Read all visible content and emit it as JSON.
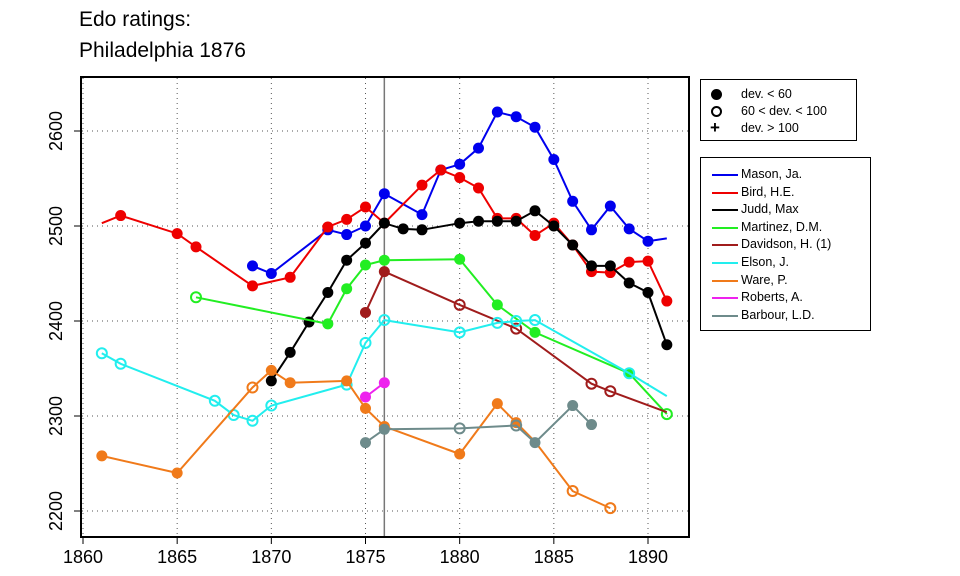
{
  "title_line1": "Edo ratings:",
  "title_line2": "Philadelphia 1876",
  "chart_data": {
    "type": "line",
    "title": "Edo ratings: Philadelphia 1876",
    "xlabel": "",
    "ylabel": "",
    "xlim": [
      1860,
      1892
    ],
    "ylim": [
      2190,
      2655
    ],
    "xticks": [
      1860,
      1865,
      1870,
      1875,
      1880,
      1885,
      1890
    ],
    "yticks": [
      2200,
      2300,
      2400,
      2500,
      2600
    ],
    "vline": 1876,
    "grid": true,
    "symbol_legend": [
      {
        "label": "dev. < 60",
        "marker": "filled"
      },
      {
        "label": "60 < dev. < 100",
        "marker": "open"
      },
      {
        "label": "dev. > 100",
        "marker": "plus"
      }
    ],
    "series": [
      {
        "name": "Mason, Ja.",
        "color": "#0000ee",
        "points": [
          [
            1869,
            2458,
            "f"
          ],
          [
            1870,
            2450,
            "f"
          ],
          [
            1873,
            2496,
            "f"
          ],
          [
            1874,
            2491,
            "f"
          ],
          [
            1875,
            2500,
            "f"
          ],
          [
            1876,
            2534,
            "f"
          ],
          [
            1878,
            2512,
            "f"
          ],
          [
            1879,
            2559,
            "f"
          ],
          [
            1880,
            2565,
            "f"
          ],
          [
            1881,
            2582,
            "f"
          ],
          [
            1882,
            2620,
            "f"
          ],
          [
            1883,
            2615,
            "f"
          ],
          [
            1884,
            2604,
            "f"
          ],
          [
            1885,
            2570,
            "f"
          ],
          [
            1886,
            2526,
            "f"
          ],
          [
            1887,
            2496,
            "f"
          ],
          [
            1888,
            2521,
            "f"
          ],
          [
            1889,
            2497,
            "f"
          ],
          [
            1890,
            2484,
            "f"
          ],
          [
            1891,
            2487,
            "n"
          ]
        ]
      },
      {
        "name": "Bird, H.E.",
        "color": "#ee0000",
        "points": [
          [
            1861,
            2503,
            "n"
          ],
          [
            1862,
            2511,
            "f"
          ],
          [
            1865,
            2492,
            "f"
          ],
          [
            1866,
            2478,
            "f"
          ],
          [
            1869,
            2437,
            "f"
          ],
          [
            1871,
            2446,
            "f"
          ],
          [
            1873,
            2499,
            "f"
          ],
          [
            1874,
            2507,
            "f"
          ],
          [
            1875,
            2520,
            "f"
          ],
          [
            1876,
            2503,
            "f"
          ],
          [
            1878,
            2543,
            "f"
          ],
          [
            1879,
            2559,
            "f"
          ],
          [
            1880,
            2551,
            "f"
          ],
          [
            1881,
            2540,
            "f"
          ],
          [
            1882,
            2508,
            "f"
          ],
          [
            1883,
            2508,
            "f"
          ],
          [
            1884,
            2490,
            "f"
          ],
          [
            1885,
            2503,
            "f"
          ],
          [
            1886,
            2480,
            "f"
          ],
          [
            1887,
            2452,
            "f"
          ],
          [
            1888,
            2451,
            "f"
          ],
          [
            1889,
            2462,
            "f"
          ],
          [
            1890,
            2463,
            "f"
          ],
          [
            1891,
            2421,
            "f"
          ]
        ]
      },
      {
        "name": "Judd, Max",
        "color": "#000000",
        "points": [
          [
            1870,
            2337,
            "f"
          ],
          [
            1871,
            2367,
            "f"
          ],
          [
            1872,
            2399,
            "f"
          ],
          [
            1873,
            2430,
            "f"
          ],
          [
            1874,
            2464,
            "f"
          ],
          [
            1875,
            2482,
            "f"
          ],
          [
            1876,
            2503,
            "f"
          ],
          [
            1877,
            2497,
            "f"
          ],
          [
            1878,
            2496,
            "f"
          ],
          [
            1880,
            2503,
            "f"
          ],
          [
            1881,
            2505,
            "f"
          ],
          [
            1882,
            2505,
            "f"
          ],
          [
            1883,
            2505,
            "f"
          ],
          [
            1884,
            2516,
            "f"
          ],
          [
            1885,
            2500,
            "f"
          ],
          [
            1886,
            2480,
            "f"
          ],
          [
            1887,
            2458,
            "f"
          ],
          [
            1888,
            2458,
            "f"
          ],
          [
            1889,
            2440,
            "f"
          ],
          [
            1890,
            2430,
            "f"
          ],
          [
            1891,
            2375,
            "f"
          ]
        ]
      },
      {
        "name": "Martinez, D.M.",
        "color": "#22ee22",
        "points": [
          [
            1866,
            2425,
            "o"
          ],
          [
            1873,
            2397,
            "f"
          ],
          [
            1874,
            2434,
            "f"
          ],
          [
            1875,
            2459,
            "f"
          ],
          [
            1876,
            2464,
            "f"
          ],
          [
            1880,
            2465,
            "f"
          ],
          [
            1882,
            2417,
            "f"
          ],
          [
            1884,
            2388,
            "f"
          ],
          [
            1889,
            2345,
            "f"
          ],
          [
            1891,
            2302,
            "o"
          ]
        ]
      },
      {
        "name": "Davidson, H. (1)",
        "color": "#a01c1c",
        "points": [
          [
            1875,
            2409,
            "f"
          ],
          [
            1876,
            2452,
            "f"
          ],
          [
            1880,
            2417,
            "o"
          ],
          [
            1883,
            2392,
            "o"
          ],
          [
            1887,
            2334,
            "o"
          ],
          [
            1888,
            2326,
            "o"
          ],
          [
            1891,
            2304,
            "n"
          ]
        ]
      },
      {
        "name": "Elson, J.",
        "color": "#22eeee",
        "points": [
          [
            1861,
            2366,
            "o"
          ],
          [
            1862,
            2355,
            "o"
          ],
          [
            1867,
            2316,
            "o"
          ],
          [
            1868,
            2301,
            "o"
          ],
          [
            1869,
            2295,
            "o"
          ],
          [
            1870,
            2311,
            "o"
          ],
          [
            1874,
            2333,
            "o"
          ],
          [
            1875,
            2377,
            "o"
          ],
          [
            1876,
            2401,
            "o"
          ],
          [
            1880,
            2388,
            "o"
          ],
          [
            1882,
            2398,
            "o"
          ],
          [
            1883,
            2400,
            "o"
          ],
          [
            1884,
            2401,
            "o"
          ],
          [
            1889,
            2345,
            "o"
          ],
          [
            1891,
            2321,
            "n"
          ]
        ]
      },
      {
        "name": "Ware, P.",
        "color": "#f07a1a",
        "points": [
          [
            1861,
            2258,
            "f"
          ],
          [
            1865,
            2240,
            "f"
          ],
          [
            1869,
            2330,
            "o"
          ],
          [
            1870,
            2348,
            "f"
          ],
          [
            1871,
            2335,
            "f"
          ],
          [
            1874,
            2337,
            "f"
          ],
          [
            1875,
            2308,
            "f"
          ],
          [
            1876,
            2289,
            "f"
          ],
          [
            1880,
            2260,
            "f"
          ],
          [
            1882,
            2313,
            "f"
          ],
          [
            1883,
            2293,
            "f"
          ],
          [
            1884,
            2273,
            "n"
          ],
          [
            1886,
            2221,
            "o"
          ],
          [
            1888,
            2203,
            "o"
          ]
        ]
      },
      {
        "name": "Roberts, A.",
        "color": "#ee22ee",
        "points": [
          [
            1875,
            2320,
            "f"
          ],
          [
            1876,
            2335,
            "f"
          ]
        ]
      },
      {
        "name": "Barbour, L.D.",
        "color": "#6e8b8b",
        "points": [
          [
            1875,
            2272,
            "f"
          ],
          [
            1876,
            2286,
            "f"
          ],
          [
            1880,
            2287,
            "o"
          ],
          [
            1883,
            2290,
            "o"
          ],
          [
            1884,
            2272,
            "f"
          ],
          [
            1886,
            2311,
            "f"
          ],
          [
            1887,
            2291,
            "f"
          ]
        ]
      }
    ]
  }
}
